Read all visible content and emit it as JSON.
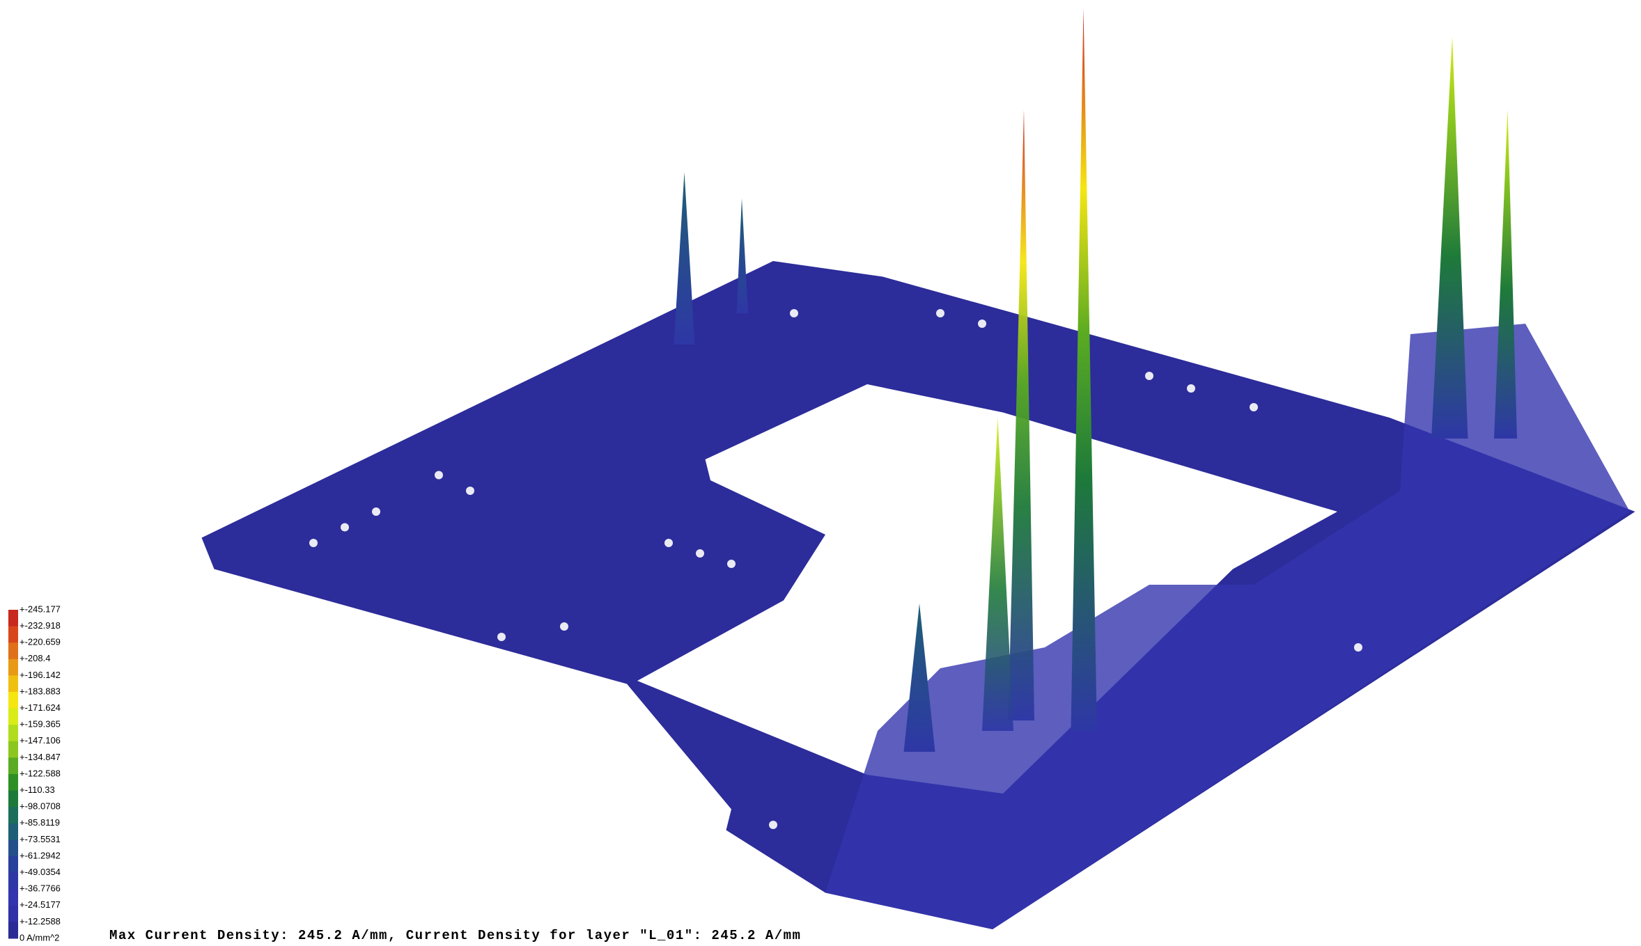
{
  "legend": {
    "labels": [
      "+-245.177",
      "+-232.918",
      "+-220.659",
      "+-208.4",
      "+-196.142",
      "+-183.883",
      "+-171.624",
      "+-159.365",
      "+-147.106",
      "+-134.847",
      "+-122.588",
      "+-110.33",
      "+-98.0708",
      "+-85.8119",
      "+-73.5531",
      "+-61.2942",
      "+-49.0354",
      "+-36.7766",
      "+-24.5177",
      "+-12.2588",
      "0 A/mm^2"
    ],
    "colors": [
      "#c8281e",
      "#d9461c",
      "#e0701a",
      "#e99a15",
      "#f0c010",
      "#f5e612",
      "#d9ec17",
      "#b0dc1e",
      "#8cc71f",
      "#5aab22",
      "#2e8f25",
      "#1e7a3a",
      "#1c6e5a",
      "#1f5f75",
      "#23508a",
      "#283f9c",
      "#2e37a6",
      "#3234b0",
      "#3030a8",
      "#2a2a96"
    ]
  },
  "status_text": "Max Current Density: 245.2 A/mm, Current Density for layer \"L_01\": 245.2 A/mm"
}
